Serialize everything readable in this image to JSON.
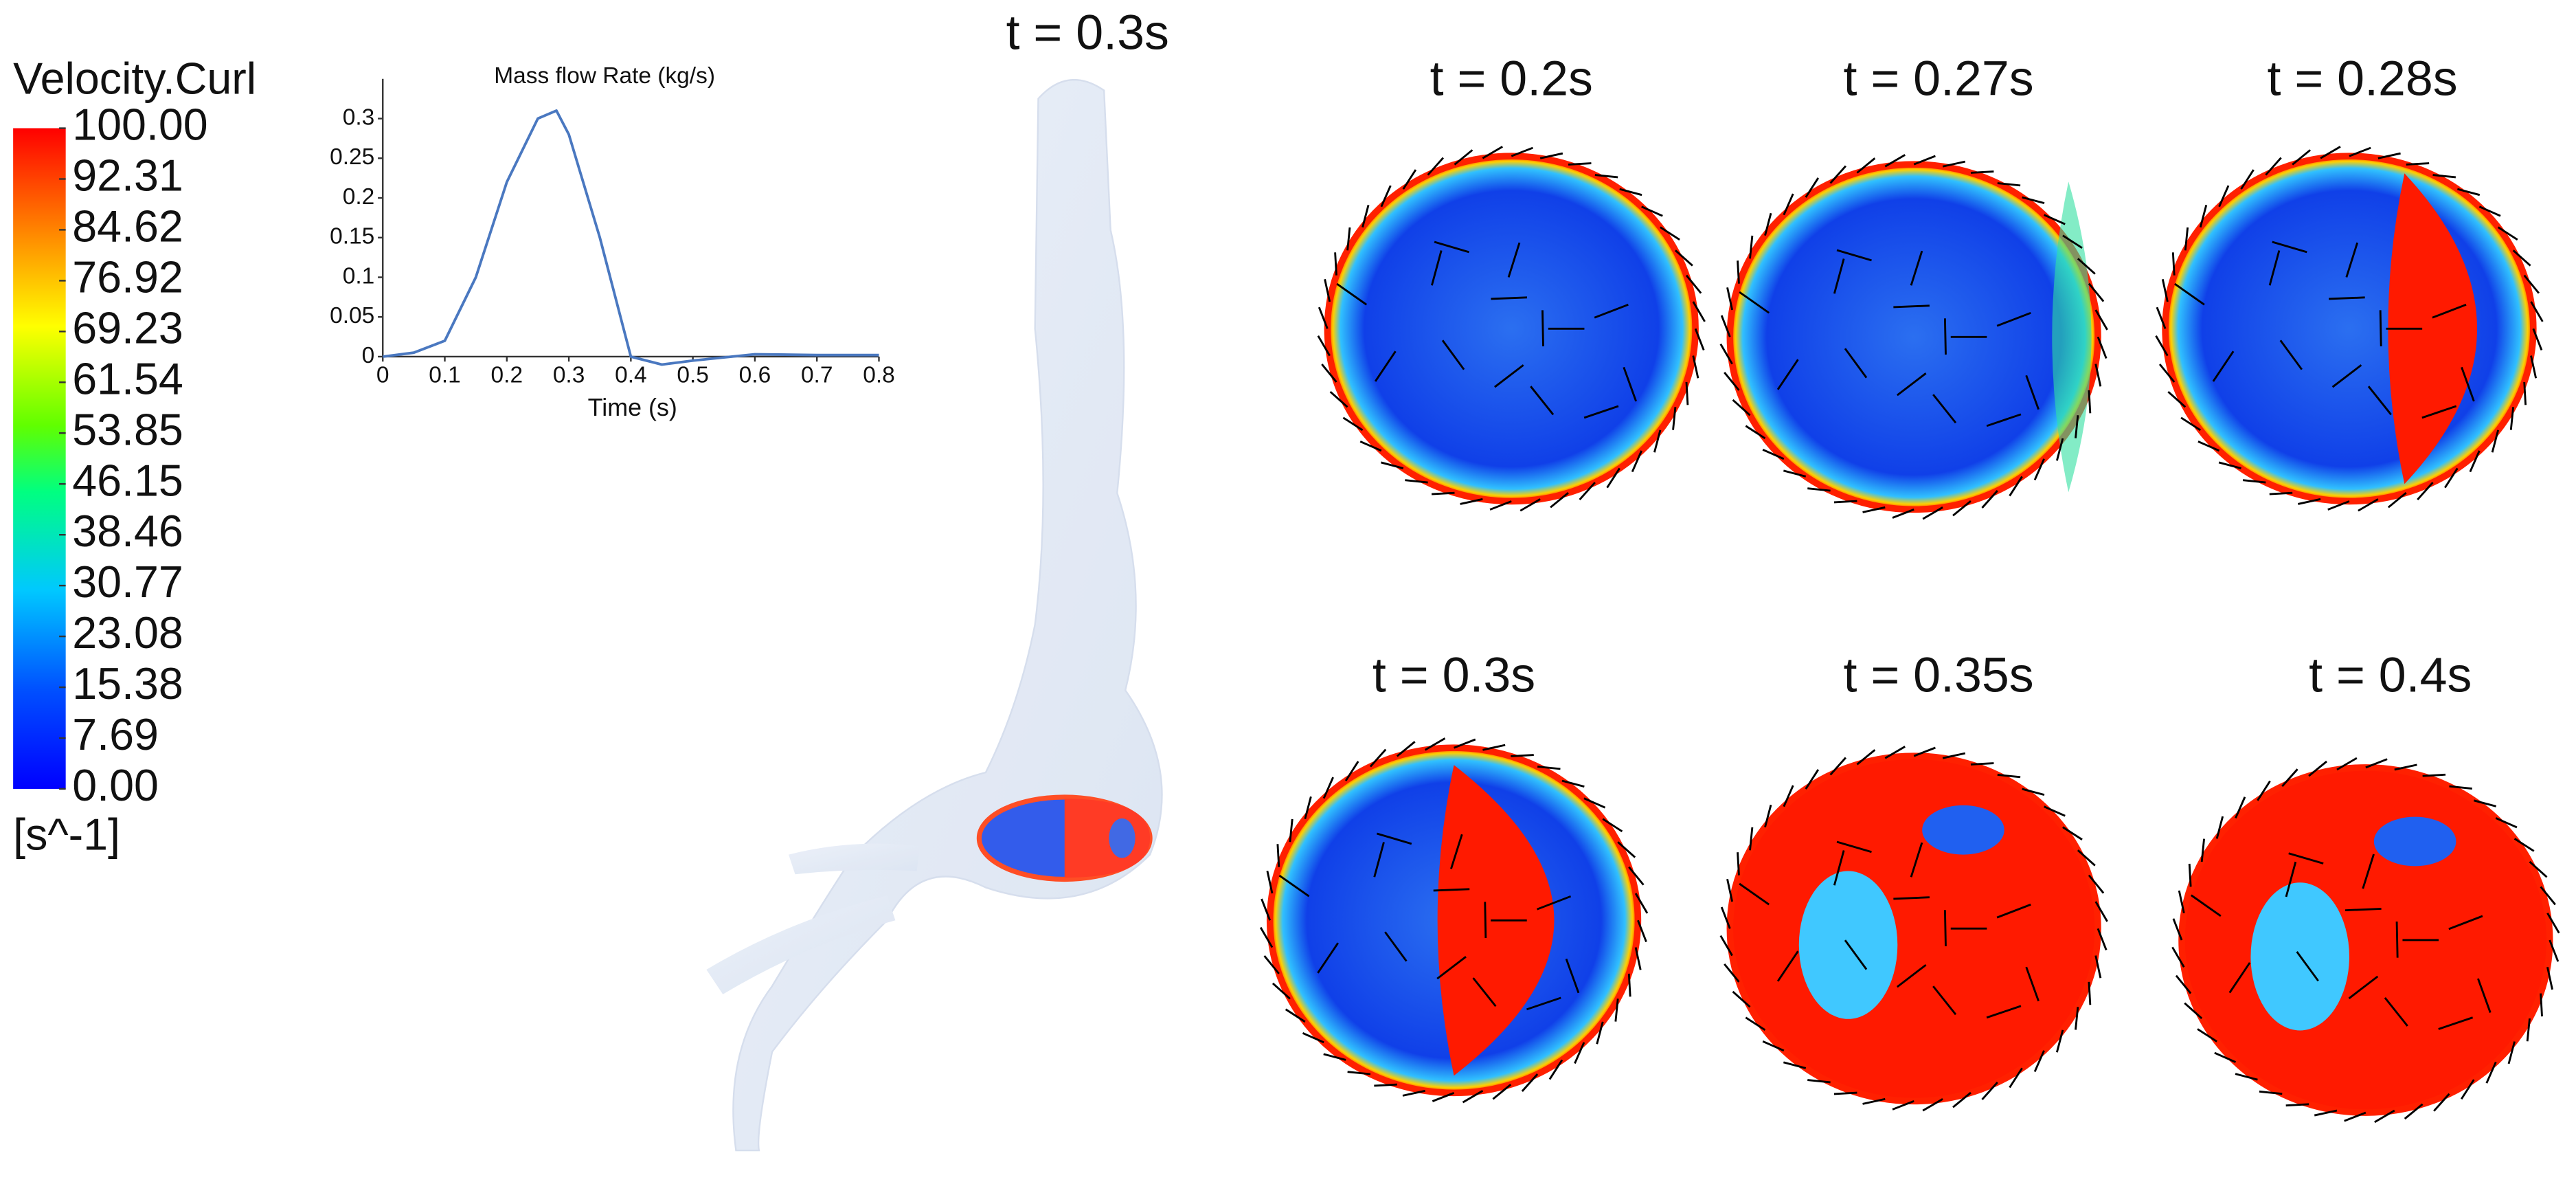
{
  "colorbar": {
    "title": "Velocity.Curl",
    "unit": "[s^-1]",
    "lim": [
      0,
      100
    ],
    "ticks": [
      {
        "value": 100,
        "label": "100.00"
      },
      {
        "value": 92.31,
        "label": "92.31"
      },
      {
        "value": 84.62,
        "label": "84.62"
      },
      {
        "value": 76.92,
        "label": "76.92"
      },
      {
        "value": 69.23,
        "label": "69.23"
      },
      {
        "value": 61.54,
        "label": "61.54"
      },
      {
        "value": 53.85,
        "label": "53.85"
      },
      {
        "value": 46.15,
        "label": "46.15"
      },
      {
        "value": 38.46,
        "label": "38.46"
      },
      {
        "value": 30.77,
        "label": "30.77"
      },
      {
        "value": 23.08,
        "label": "23.08"
      },
      {
        "value": 15.38,
        "label": "15.38"
      },
      {
        "value": 7.69,
        "label": "7.69"
      },
      {
        "value": 0,
        "label": "0.00"
      }
    ]
  },
  "chart_data": {
    "type": "line",
    "title": "Mass flow Rate (kg/s)",
    "x_label": "Time (s)",
    "x": [
      0,
      0.05,
      0.1,
      0.15,
      0.2,
      0.25,
      0.28,
      0.3,
      0.35,
      0.4,
      0.45,
      0.5,
      0.6,
      0.7,
      0.8
    ],
    "values": [
      0,
      0.005,
      0.02,
      0.1,
      0.22,
      0.3,
      0.31,
      0.28,
      0.15,
      0.0,
      -0.01,
      -0.005,
      0.003,
      0.002,
      0.002
    ],
    "color": "#4a78c0",
    "xlim": [
      0,
      0.8
    ],
    "xticks": [
      0,
      0.1,
      0.2,
      0.3,
      0.4,
      0.5,
      0.6,
      0.7,
      0.8
    ],
    "ylim": [
      0,
      0.35
    ],
    "yticks": [
      0,
      0.05,
      0.1,
      0.15,
      0.2,
      0.25,
      0.3
    ]
  },
  "vessel_label": "t = 0.3s",
  "panels": [
    {
      "title": "t = 0.2s"
    },
    {
      "title": "t = 0.27s"
    },
    {
      "title": "t = 0.28s"
    },
    {
      "title": "t = 0.3s"
    },
    {
      "title": "t = 0.35s"
    },
    {
      "title": "t = 0.4s"
    }
  ]
}
